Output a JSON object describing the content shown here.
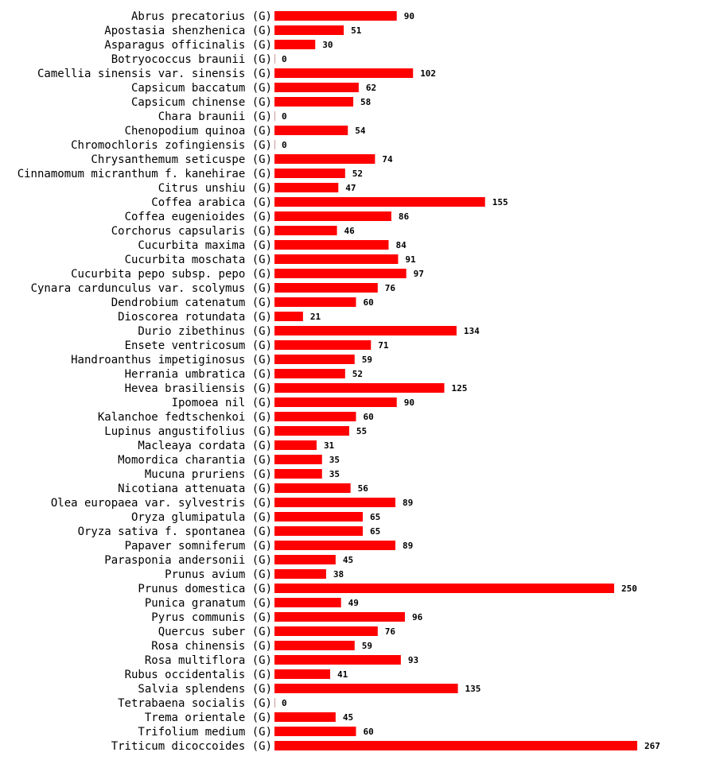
{
  "chart_data": {
    "type": "bar",
    "orientation": "horizontal",
    "bar_color": "#ff0000",
    "text_color": "#000000",
    "title": "",
    "xlabel": "",
    "ylabel": "",
    "xlim": [
      0,
      267
    ],
    "categories": [
      "Abrus precatorius (G)",
      "Apostasia shenzhenica (G)",
      "Asparagus officinalis (G)",
      "Botryococcus braunii (G)",
      "Camellia sinensis var. sinensis (G)",
      "Capsicum baccatum (G)",
      "Capsicum chinense (G)",
      "Chara braunii (G)",
      "Chenopodium quinoa (G)",
      "Chromochloris zofingiensis (G)",
      "Chrysanthemum seticuspe (G)",
      "Cinnamomum micranthum f. kanehirae (G)",
      "Citrus unshiu (G)",
      "Coffea arabica (G)",
      "Coffea eugenioides (G)",
      "Corchorus capsularis (G)",
      "Cucurbita maxima (G)",
      "Cucurbita moschata (G)",
      "Cucurbita pepo subsp. pepo (G)",
      "Cynara cardunculus var. scolymus (G)",
      "Dendrobium catenatum (G)",
      "Dioscorea rotundata (G)",
      "Durio zibethinus (G)",
      "Ensete ventricosum (G)",
      "Handroanthus impetiginosus (G)",
      "Herrania umbratica (G)",
      "Hevea brasiliensis (G)",
      "Ipomoea nil (G)",
      "Kalanchoe fedtschenkoi (G)",
      "Lupinus angustifolius (G)",
      "Macleaya cordata (G)",
      "Momordica charantia (G)",
      "Mucuna pruriens (G)",
      "Nicotiana attenuata (G)",
      "Olea europaea var. sylvestris (G)",
      "Oryza glumipatula (G)",
      "Oryza sativa f. spontanea (G)",
      "Papaver somniferum (G)",
      "Parasponia andersonii (G)",
      "Prunus avium (G)",
      "Prunus domestica (G)",
      "Punica granatum (G)",
      "Pyrus communis (G)",
      "Quercus suber (G)",
      "Rosa chinensis (G)",
      "Rosa multiflora (G)",
      "Rubus occidentalis (G)",
      "Salvia splendens (G)",
      "Tetrabaena socialis (G)",
      "Trema orientale (G)",
      "Trifolium medium (G)",
      "Triticum dicoccoides (G)"
    ],
    "values": [
      90,
      51,
      30,
      0,
      102,
      62,
      58,
      0,
      54,
      0,
      74,
      52,
      47,
      155,
      86,
      46,
      84,
      91,
      97,
      76,
      60,
      21,
      134,
      71,
      59,
      52,
      125,
      90,
      60,
      55,
      31,
      35,
      35,
      56,
      89,
      65,
      65,
      89,
      45,
      38,
      250,
      49,
      96,
      76,
      59,
      93,
      41,
      135,
      0,
      45,
      60,
      267
    ]
  }
}
